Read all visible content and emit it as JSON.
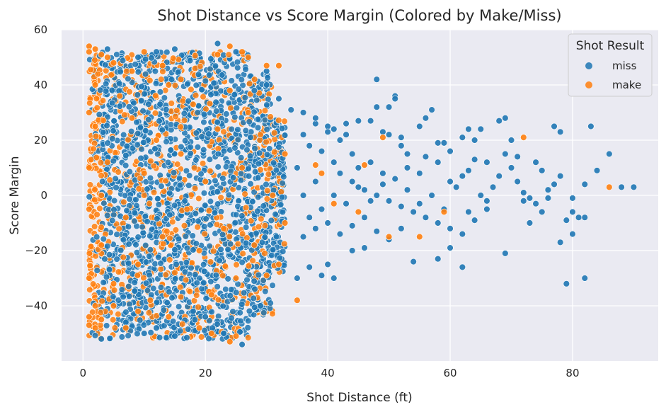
{
  "chart_data": {
    "type": "scatter",
    "title": "Shot Distance vs Score Margin (Colored by Make/Miss)",
    "xlabel": "Shot Distance (ft)",
    "ylabel": "Score Margin",
    "xlim": [
      -3.5,
      94
    ],
    "ylim": [
      -60,
      60
    ],
    "xticks": [
      0,
      20,
      40,
      60,
      80
    ],
    "yticks": [
      -40,
      -20,
      0,
      20,
      40,
      60
    ],
    "grid": true,
    "legend": {
      "title": "Shot Result",
      "placement": "top-right"
    },
    "series": [
      {
        "name": "miss",
        "color": "#1f77b4",
        "points": [
          [
            48,
            42
          ],
          [
            51,
            36
          ],
          [
            51,
            35
          ],
          [
            50,
            32
          ],
          [
            48,
            32
          ],
          [
            45,
            27
          ],
          [
            57,
            31
          ],
          [
            56,
            28
          ],
          [
            47,
            27
          ],
          [
            52,
            21
          ],
          [
            52,
            18
          ],
          [
            55,
            25
          ],
          [
            50,
            22
          ],
          [
            49,
            23
          ],
          [
            58,
            19
          ],
          [
            59,
            19
          ],
          [
            62,
            21
          ],
          [
            63,
            24
          ],
          [
            64,
            20
          ],
          [
            65,
            24
          ],
          [
            69,
            28
          ],
          [
            68,
            27
          ],
          [
            70,
            20
          ],
          [
            71,
            14
          ],
          [
            74,
            12
          ],
          [
            75,
            9
          ],
          [
            77,
            25
          ],
          [
            78,
            23
          ],
          [
            83,
            25
          ],
          [
            86,
            15
          ],
          [
            84,
            9
          ],
          [
            82,
            4
          ],
          [
            78,
            7
          ],
          [
            76,
            -1
          ],
          [
            75,
            -6
          ],
          [
            80,
            -6
          ],
          [
            81,
            -8
          ],
          [
            82,
            -8
          ],
          [
            78,
            -17
          ],
          [
            80,
            -14
          ],
          [
            79,
            -32
          ],
          [
            82,
            -30
          ],
          [
            73,
            -10
          ],
          [
            69,
            -21
          ],
          [
            62,
            -26
          ],
          [
            58,
            -23
          ],
          [
            54,
            -24
          ],
          [
            60,
            -19
          ],
          [
            46,
            -19
          ],
          [
            40,
            -25
          ],
          [
            41,
            -30
          ],
          [
            39,
            -29
          ],
          [
            35,
            -30
          ],
          [
            37,
            -26
          ],
          [
            44,
            -20
          ],
          [
            88,
            3
          ],
          [
            90,
            3
          ],
          [
            80,
            -1
          ],
          [
            79,
            -9
          ],
          [
            72,
            -2
          ],
          [
            66,
            -2
          ],
          [
            63,
            -6
          ],
          [
            65,
            0
          ],
          [
            60,
            5
          ],
          [
            62,
            7
          ],
          [
            55,
            8
          ],
          [
            53,
            10
          ],
          [
            58,
            12
          ],
          [
            47,
            12
          ],
          [
            44,
            15
          ],
          [
            43,
            22
          ],
          [
            41,
            24
          ],
          [
            40,
            25
          ],
          [
            38,
            26
          ],
          [
            43,
            26
          ],
          [
            36,
            30
          ],
          [
            38,
            28
          ],
          [
            40,
            23
          ],
          [
            42,
            20
          ],
          [
            34,
            31
          ],
          [
            36,
            22
          ],
          [
            37,
            18
          ],
          [
            39,
            16
          ],
          [
            41,
            12
          ],
          [
            42,
            8
          ],
          [
            44,
            5
          ],
          [
            46,
            2
          ],
          [
            48,
            0
          ],
          [
            50,
            -2
          ],
          [
            52,
            -4
          ],
          [
            54,
            -6
          ],
          [
            56,
            -8
          ],
          [
            58,
            -10
          ],
          [
            60,
            -12
          ],
          [
            62,
            -14
          ],
          [
            64,
            -9
          ],
          [
            66,
            -5
          ],
          [
            67,
            3
          ],
          [
            68,
            7
          ],
          [
            70,
            10
          ],
          [
            71,
            5
          ],
          [
            72,
            1
          ],
          [
            73,
            -1
          ],
          [
            74,
            -3
          ],
          [
            76,
            2
          ],
          [
            77,
            4
          ],
          [
            36,
            -15
          ],
          [
            38,
            -12
          ],
          [
            40,
            -10
          ],
          [
            42,
            -14
          ],
          [
            44,
            -11
          ],
          [
            46,
            -8
          ],
          [
            48,
            -13
          ],
          [
            50,
            -16
          ],
          [
            52,
            -12
          ],
          [
            38,
            5
          ],
          [
            39,
            -5
          ],
          [
            41,
            0
          ],
          [
            43,
            -3
          ],
          [
            45,
            3
          ],
          [
            47,
            -2
          ],
          [
            49,
            4
          ],
          [
            51,
            6
          ],
          [
            53,
            2
          ],
          [
            55,
            -3
          ],
          [
            57,
            0
          ],
          [
            59,
            -5
          ],
          [
            61,
            3
          ],
          [
            63,
            9
          ],
          [
            64,
            13
          ],
          [
            35,
            10
          ],
          [
            36,
            0
          ],
          [
            37,
            -8
          ],
          [
            45,
            10
          ],
          [
            49,
            8
          ],
          [
            53,
            15
          ],
          [
            56,
            14
          ],
          [
            60,
            16
          ],
          [
            66,
            12
          ],
          [
            69,
            15
          ],
          [
            9,
            50
          ],
          [
            12,
            52
          ],
          [
            4,
            53
          ],
          [
            15,
            53
          ],
          [
            22,
            55
          ],
          [
            25,
            52
          ],
          [
            30,
            40
          ],
          [
            30,
            45
          ],
          [
            28,
            38
          ],
          [
            32,
            35
          ],
          [
            10,
            -50
          ],
          [
            3,
            -52
          ],
          [
            15,
            -51
          ],
          [
            23,
            -50
          ],
          [
            26,
            -54
          ],
          [
            29,
            -40
          ],
          [
            20,
            -44
          ],
          [
            7,
            -46
          ],
          [
            12,
            -48
          ],
          [
            18,
            -42
          ]
        ]
      },
      {
        "name": "make",
        "color": "#ff7f0e",
        "points": [
          [
            1,
            54
          ],
          [
            1,
            52
          ],
          [
            2,
            53
          ],
          [
            3,
            51
          ],
          [
            4,
            50
          ],
          [
            5,
            48
          ],
          [
            8,
            45
          ],
          [
            10,
            52
          ],
          [
            13,
            47
          ],
          [
            16,
            42
          ],
          [
            22,
            51
          ],
          [
            24,
            54
          ],
          [
            26,
            52
          ],
          [
            27,
            50
          ],
          [
            30,
            47
          ],
          [
            32,
            47
          ],
          [
            1,
            -44
          ],
          [
            1,
            -47
          ],
          [
            2,
            -48
          ],
          [
            3,
            -45
          ],
          [
            5,
            -40
          ],
          [
            7,
            -48
          ],
          [
            9,
            -42
          ],
          [
            14,
            -44
          ],
          [
            19,
            -48
          ],
          [
            21,
            -50
          ],
          [
            24,
            -53
          ],
          [
            25,
            -51
          ],
          [
            30,
            -29
          ],
          [
            32,
            -25
          ],
          [
            35,
            -38
          ],
          [
            72,
            21
          ],
          [
            86,
            3
          ],
          [
            59,
            -6
          ],
          [
            50,
            -15
          ],
          [
            55,
            -15
          ],
          [
            49,
            21
          ],
          [
            46,
            11
          ],
          [
            39,
            8
          ],
          [
            38,
            11
          ],
          [
            41,
            -3
          ],
          [
            45,
            -6
          ],
          [
            33,
            15
          ],
          [
            33,
            -10
          ],
          [
            31,
            0
          ],
          [
            29,
            22
          ],
          [
            28,
            -18
          ],
          [
            27,
            30
          ],
          [
            26,
            10
          ],
          [
            25,
            -30
          ],
          [
            24,
            38
          ],
          [
            23,
            -12
          ],
          [
            22,
            24
          ],
          [
            21,
            -36
          ],
          [
            20,
            5
          ],
          [
            19,
            -20
          ],
          [
            18,
            33
          ],
          [
            17,
            -5
          ],
          [
            16,
            15
          ],
          [
            15,
            -28
          ],
          [
            14,
            40
          ],
          [
            13,
            -15
          ],
          [
            12,
            20
          ],
          [
            11,
            -38
          ],
          [
            10,
            8
          ],
          [
            9,
            -25
          ],
          [
            8,
            28
          ],
          [
            7,
            -8
          ],
          [
            6,
            36
          ],
          [
            5,
            -32
          ],
          [
            4,
            12
          ],
          [
            3,
            -18
          ],
          [
            2,
            25
          ],
          [
            1,
            -5
          ],
          [
            1,
            10
          ],
          [
            1,
            30
          ],
          [
            1,
            -30
          ],
          [
            2,
            40
          ],
          [
            2,
            -40
          ],
          [
            3,
            0
          ]
        ]
      }
    ]
  }
}
